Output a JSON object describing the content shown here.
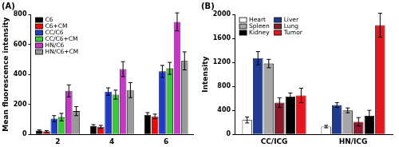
{
  "chart_data": [
    {
      "type": "bar",
      "title": "(A)",
      "y_label": "Mean fluorescence intensity",
      "categories": [
        "2",
        "4",
        "6"
      ],
      "series": [
        {
          "name": "C6",
          "color": "#000000",
          "values": [
            25,
            55,
            130
          ],
          "errors": [
            5,
            10,
            15
          ]
        },
        {
          "name": "C6+CM",
          "color": "#ff0000",
          "values": [
            20,
            50,
            120
          ],
          "errors": [
            5,
            10,
            15
          ]
        },
        {
          "name": "CC/C6",
          "color": "#1f3cc8",
          "values": [
            105,
            285,
            420
          ],
          "errors": [
            20,
            25,
            40
          ]
        },
        {
          "name": "CC/C6+CM",
          "color": "#33cc33",
          "values": [
            115,
            265,
            440
          ],
          "errors": [
            25,
            30,
            40
          ]
        },
        {
          "name": "HN/C6",
          "color": "#cc33cc",
          "values": [
            290,
            435,
            750
          ],
          "errors": [
            40,
            50,
            60
          ]
        },
        {
          "name": "HN/C6+CM",
          "color": "#999999",
          "values": [
            155,
            295,
            490
          ],
          "errors": [
            30,
            50,
            60
          ]
        }
      ],
      "ylim": [
        0,
        800
      ],
      "yticks": [
        0,
        200,
        400,
        600,
        800
      ],
      "grid": false,
      "legend": "upper left"
    },
    {
      "type": "bar",
      "title": "(B)",
      "y_label": "Intensity",
      "categories": [
        "CC/ICG",
        "HN/ICG"
      ],
      "series": [
        {
          "name": "Heart",
          "color": "#ffffff",
          "values": [
            240,
            130
          ],
          "errors": [
            50,
            20
          ]
        },
        {
          "name": "Liver",
          "color": "#1f3a93",
          "values": [
            1270,
            490
          ],
          "errors": [
            110,
            40
          ]
        },
        {
          "name": "Spleen",
          "color": "#a6a6a6",
          "values": [
            1180,
            400
          ],
          "errors": [
            70,
            40
          ]
        },
        {
          "name": "Lung",
          "color": "#8b1a2b",
          "values": [
            530,
            210
          ],
          "errors": [
            80,
            70
          ]
        },
        {
          "name": "Kidney",
          "color": "#000000",
          "values": [
            630,
            310
          ],
          "errors": [
            60,
            90
          ]
        },
        {
          "name": "Tumor",
          "color": "#e8141e",
          "values": [
            650,
            1820
          ],
          "errors": [
            120,
            200
          ]
        }
      ],
      "ylim": [
        0,
        2000
      ],
      "yticks": [
        0,
        400,
        800,
        1200,
        1600,
        2000
      ],
      "grid": false,
      "legend": "upper left"
    }
  ]
}
